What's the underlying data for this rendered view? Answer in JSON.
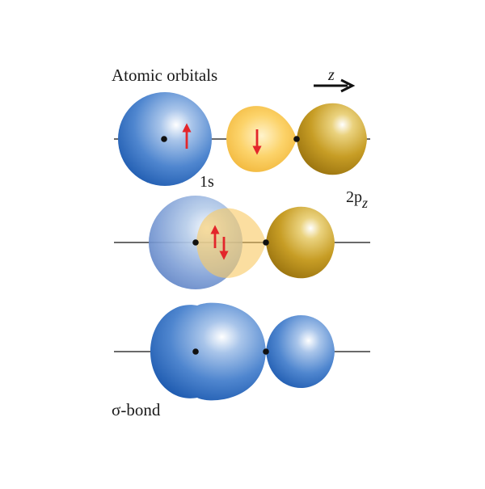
{
  "labels": {
    "title": "Atomic orbitals",
    "axis": "z",
    "orbital_1s": "1s",
    "orbital_2p_main": "2p",
    "orbital_2p_sub": "z",
    "bond": "σ-bond"
  },
  "colors": {
    "s_orbital_blue": "#1f63b8",
    "p_lobe_gold_light": "#f6c54a",
    "p_lobe_gold_dark": "#b98f18",
    "electron_arrow": "#e3262b",
    "nucleus": "#111111",
    "axis_line": "#111111"
  },
  "icons": {
    "spin_up": "spin-up-arrow-icon",
    "spin_down": "spin-down-arrow-icon",
    "spin_pair": "spin-pair-arrows-icon",
    "axis_direction": "right-arrow-icon"
  }
}
